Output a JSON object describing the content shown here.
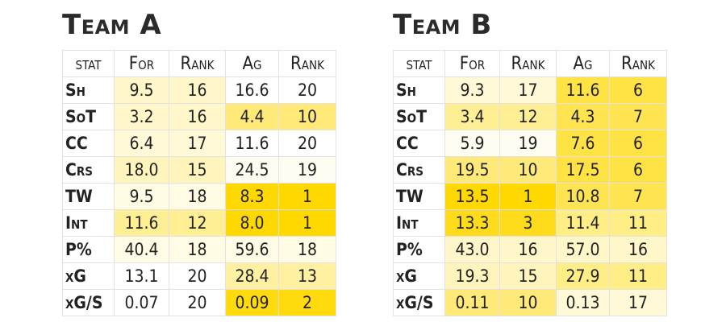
{
  "chart_data": [
    {
      "type": "table",
      "title": "Team A",
      "columns": [
        "stat",
        "For",
        "Rank",
        "Ag",
        "Rank"
      ],
      "rows": [
        {
          "stat": "Sh",
          "for": "9.5",
          "for_rank": "16",
          "ag": "16.6",
          "ag_rank": "20"
        },
        {
          "stat": "SoT",
          "for": "3.2",
          "for_rank": "16",
          "ag": "4.4",
          "ag_rank": "10"
        },
        {
          "stat": "CC",
          "for": "6.4",
          "for_rank": "17",
          "ag": "11.6",
          "ag_rank": "20"
        },
        {
          "stat": "Crs",
          "for": "18.0",
          "for_rank": "15",
          "ag": "24.5",
          "ag_rank": "19"
        },
        {
          "stat": "TW",
          "for": "9.5",
          "for_rank": "18",
          "ag": "8.3",
          "ag_rank": "1"
        },
        {
          "stat": "Int",
          "for": "11.6",
          "for_rank": "12",
          "ag": "8.0",
          "ag_rank": "1"
        },
        {
          "stat": "P%",
          "for": "40.4",
          "for_rank": "18",
          "ag": "59.6",
          "ag_rank": "18"
        },
        {
          "stat": "xG",
          "for": "13.1",
          "for_rank": "20",
          "ag": "28.4",
          "ag_rank": "13"
        },
        {
          "stat": "xG/S",
          "for": "0.07",
          "for_rank": "20",
          "ag": "0.09",
          "ag_rank": "2"
        }
      ]
    },
    {
      "type": "table",
      "title": "Team B",
      "columns": [
        "stat",
        "For",
        "Rank",
        "Ag",
        "Rank"
      ],
      "rows": [
        {
          "stat": "Sh",
          "for": "9.3",
          "for_rank": "17",
          "ag": "11.6",
          "ag_rank": "6"
        },
        {
          "stat": "SoT",
          "for": "3.4",
          "for_rank": "12",
          "ag": "4.3",
          "ag_rank": "7"
        },
        {
          "stat": "CC",
          "for": "5.9",
          "for_rank": "19",
          "ag": "7.6",
          "ag_rank": "6"
        },
        {
          "stat": "Crs",
          "for": "19.5",
          "for_rank": "10",
          "ag": "17.5",
          "ag_rank": "6"
        },
        {
          "stat": "TW",
          "for": "13.5",
          "for_rank": "1",
          "ag": "10.8",
          "ag_rank": "7"
        },
        {
          "stat": "Int",
          "for": "13.3",
          "for_rank": "3",
          "ag": "11.4",
          "ag_rank": "11"
        },
        {
          "stat": "P%",
          "for": "43.0",
          "for_rank": "16",
          "ag": "57.0",
          "ag_rank": "16"
        },
        {
          "stat": "xG",
          "for": "19.3",
          "for_rank": "15",
          "ag": "27.9",
          "ag_rank": "11"
        },
        {
          "stat": "xG/S",
          "for": "0.11",
          "for_rank": "10",
          "ag": "0.13",
          "ag_rank": "17"
        }
      ]
    }
  ],
  "colors": {
    "scale_low": "#ffffff",
    "scale_high": "#ffd800",
    "rank_range": [
      1,
      20
    ],
    "text": "#222222",
    "grid": "#e2e2e2"
  }
}
